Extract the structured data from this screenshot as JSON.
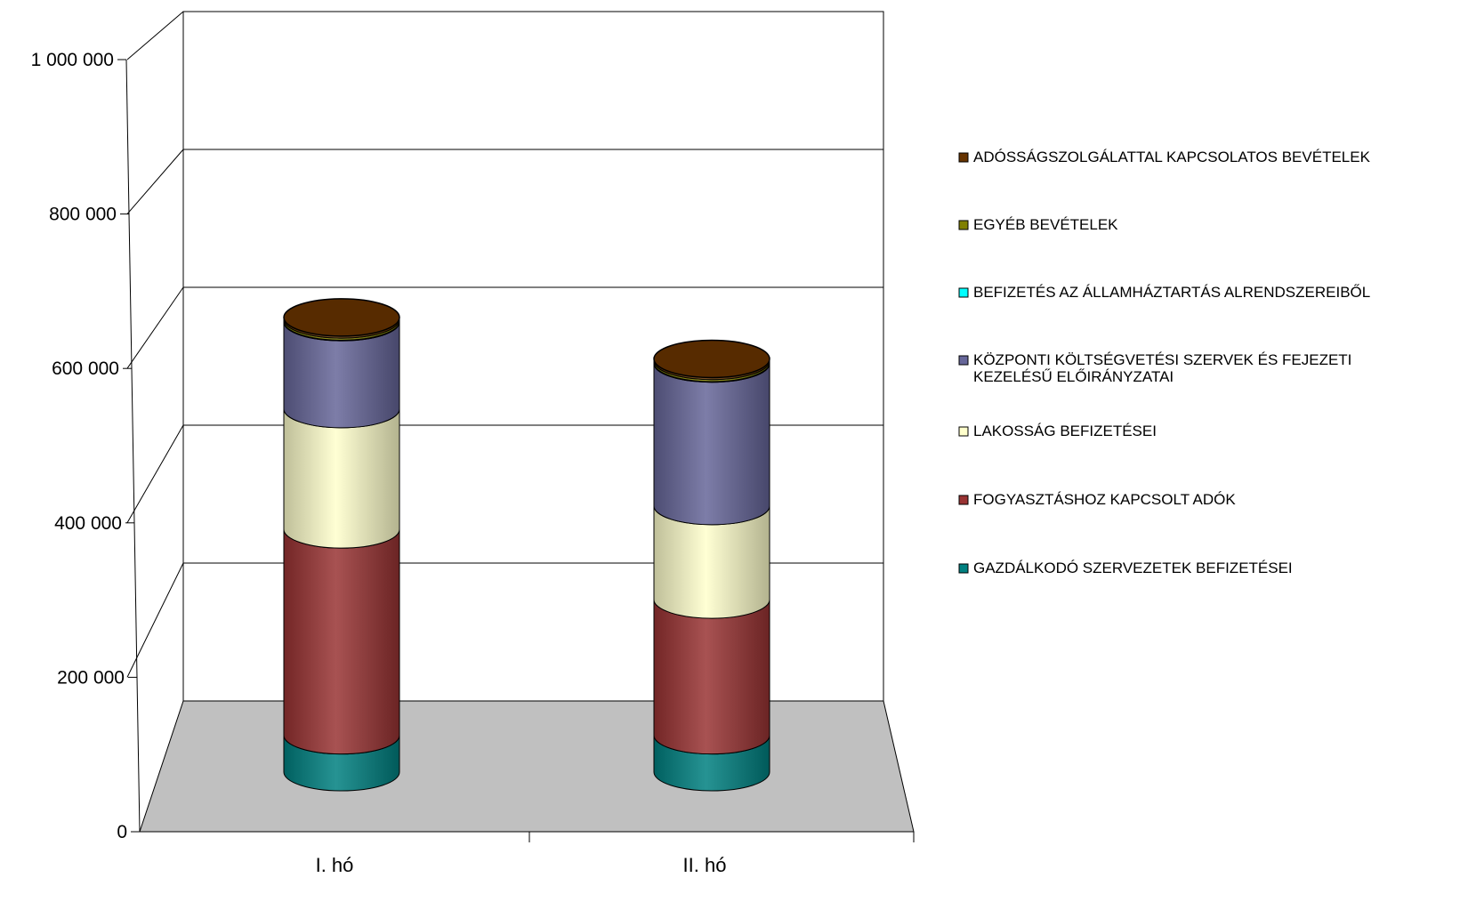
{
  "chart_data": {
    "type": "bar",
    "subtype": "stacked-3d-cylinder",
    "title": "",
    "xlabel": "",
    "ylabel": "",
    "ylim": [
      0,
      1000000
    ],
    "yticks": [
      0,
      200000,
      400000,
      600000,
      800000,
      1000000
    ],
    "ytick_labels": [
      "0",
      "200 000",
      "400 000",
      "600 000",
      "800 000",
      "1 000 000"
    ],
    "grid": true,
    "legend_position": "right",
    "floor_color": "#c0c0c0",
    "categories": [
      "I. hó",
      "II. hó"
    ],
    "series": [
      {
        "name": "GAZDÁLKODÓ SZERVEZETEK BEFIZETÉSEI",
        "legend_lines": [
          "GAZDÁLKODÓ SZERVEZETEK BEFIZETÉSEI"
        ],
        "color": "#008080",
        "values": [
          55000,
          55000
        ]
      },
      {
        "name": "FOGYASZTÁSHOZ KAPCSOLT ADÓK",
        "legend_lines": [
          "FOGYASZTÁSHOZ KAPCSOLT ADÓK"
        ],
        "color": "#993333",
        "values": [
          308000,
          203000
        ]
      },
      {
        "name": "LAKOSSÁG BEFIZETÉSEI",
        "legend_lines": [
          "LAKOSSÁG BEFIZETÉSEI"
        ],
        "color": "#ffffcc",
        "values": [
          180000,
          140000
        ]
      },
      {
        "name": "KÖZPONTI KÖLTSÉGVETÉSI SZERVEK ÉS FEJEZETI KEZELÉSŰ ELŐIRÁNYZATAI",
        "legend_lines": [
          "KÖZPONTI KÖLTSÉGVETÉSI SZERVEK ÉS FEJEZETI",
          "KEZELÉSŰ ELŐIRÁNYZATAI"
        ],
        "color": "#666699",
        "values": [
          130000,
          213000
        ]
      },
      {
        "name": "BEFIZETÉS AZ ÁLLAMHÁZTARTÁS ALRENDSZEREIBŐL",
        "legend_lines": [
          "BEFIZETÉS AZ ÁLLAMHÁZTARTÁS ALRENDSZEREIBŐL"
        ],
        "color": "#00ffff",
        "values": [
          1000,
          1000
        ]
      },
      {
        "name": "EGYÉB BEVÉTELEK",
        "legend_lines": [
          "EGYÉB BEVÉTELEK"
        ],
        "color": "#808000",
        "values": [
          3000,
          3000
        ]
      },
      {
        "name": "ADÓSSÁGSZOLGÁLATTAL KAPCSOLATOS BEVÉTELEK",
        "legend_lines": [
          "ADÓSSÁGSZOLGÁLATTAL KAPCSOLATOS BEVÉTELEK"
        ],
        "color": "#663300",
        "values": [
          3000,
          3000
        ]
      }
    ]
  }
}
